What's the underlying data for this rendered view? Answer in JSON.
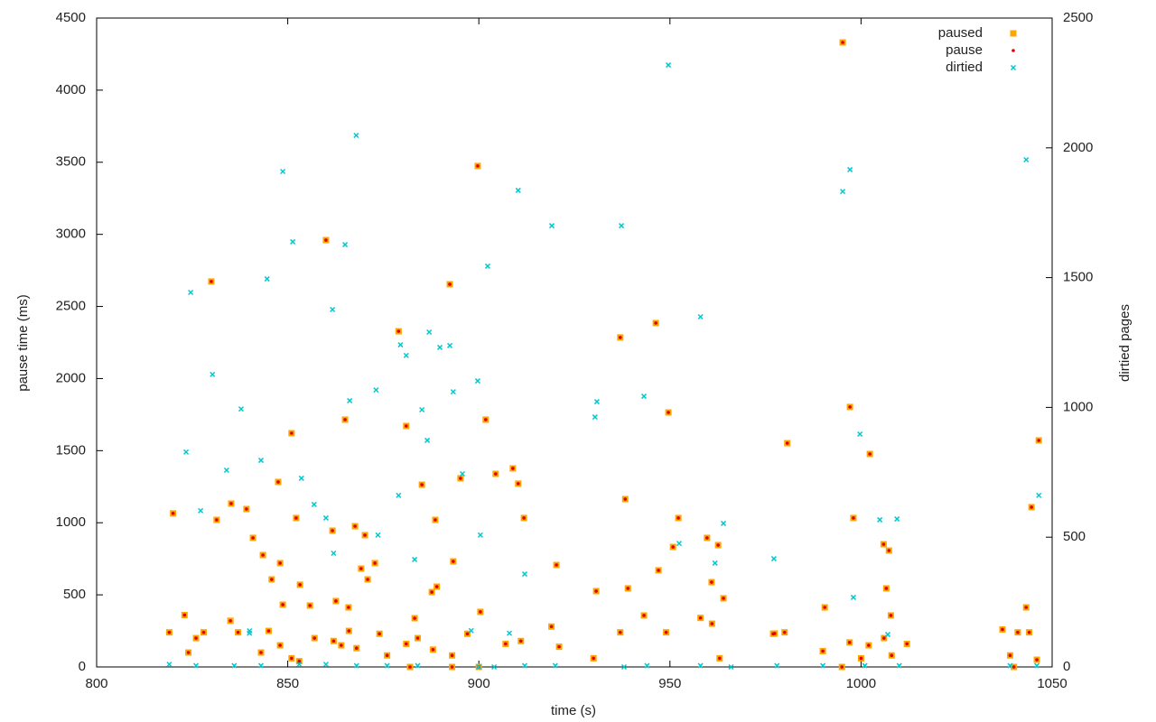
{
  "chart_data": {
    "type": "scatter",
    "xlabel": "time (s)",
    "ylabel": "pause time (ms)",
    "y2label": "dirtied pages",
    "xlim": [
      800,
      1050
    ],
    "xticks": [
      800,
      850,
      900,
      950,
      1000,
      1050
    ],
    "ylim": [
      0,
      4500
    ],
    "yticks": [
      0,
      500,
      1000,
      1500,
      2000,
      2500,
      3000,
      3500,
      4000,
      4500
    ],
    "y2lim": [
      0,
      2500
    ],
    "y2ticks": [
      0,
      500,
      1000,
      1500,
      2000,
      2500
    ],
    "grid": false,
    "legend": "top-right",
    "series": [
      {
        "name": "paused",
        "color": "#ffa500",
        "marker": "square",
        "x": [
          820,
          830,
          831.4,
          835.2,
          839.2,
          840.9,
          843.5,
          845.8,
          847.5,
          848,
          848.7,
          851,
          852.2,
          853.2,
          855.8,
          860,
          861.7,
          862.6,
          865,
          865.9,
          867.6,
          869.2,
          870.2,
          870.9,
          872.8,
          879,
          881,
          883.2,
          885.1,
          887.7,
          888.6,
          889,
          892.4,
          893.3,
          895.2,
          899.7,
          900.4,
          901.8,
          904.4,
          908.9,
          910.3,
          911.8,
          920.3,
          930.7,
          937,
          938.3,
          939,
          943.2,
          946.3,
          947,
          949.6,
          950.8,
          952.2,
          959.7,
          960.9,
          962.6,
          964,
          977.4,
          980.7,
          990.5,
          995.2,
          997.1,
          998,
          1002.3,
          1005.9,
          1007.3,
          1006.6,
          1007.8,
          1044.6,
          1043.2,
          1046.5,
          819,
          823,
          824,
          826,
          828,
          835,
          837,
          843,
          845,
          848,
          851,
          853,
          857,
          862,
          864,
          866,
          868,
          874,
          876,
          881,
          884,
          888,
          893,
          897,
          907,
          911,
          919,
          921,
          930,
          937,
          949,
          958,
          961,
          963,
          977,
          980,
          990,
          997,
          1000,
          1002,
          1006,
          1008,
          1012,
          1037,
          1039,
          1041,
          1044,
          1046,
          1040,
          893,
          882,
          995,
          900
        ],
        "values": [
          1065,
          2673,
          1020,
          1133,
          1095,
          895,
          776,
          607,
          1283,
          720,
          432,
          1621,
          1033,
          570,
          426,
          2960,
          945,
          457,
          1715,
          413,
          976,
          682,
          914,
          607,
          720,
          2328,
          1671,
          338,
          1264,
          519,
          1020,
          557,
          2654,
          732,
          1308,
          3474,
          382,
          1715,
          1339,
          1377,
          1271,
          1033,
          707,
          526,
          2285,
          1164,
          545,
          357,
          2385,
          670,
          1765,
          832,
          1033,
          895,
          588,
          845,
          476,
          232,
          1552,
          413,
          4331,
          1803,
          1033,
          1477,
          851,
          807,
          545,
          357,
          1108,
          413,
          1571,
          240,
          360,
          100,
          200,
          240,
          320,
          240,
          100,
          250,
          150,
          60,
          40,
          200,
          180,
          150,
          250,
          130,
          230,
          80,
          160,
          200,
          120,
          80,
          230,
          160,
          180,
          280,
          140,
          60,
          240,
          240,
          340,
          300,
          60,
          230,
          240,
          110,
          170,
          60,
          150,
          200,
          80,
          160,
          260,
          80,
          240,
          240,
          50,
          0,
          0,
          0,
          0,
          0
        ]
      },
      {
        "name": "pause",
        "color": "#e00000",
        "marker": "dot",
        "x": [
          820,
          830,
          831.4,
          835.2,
          839.2,
          840.9,
          843.5,
          845.8,
          847.5,
          848,
          848.7,
          851,
          852.2,
          853.2,
          855.8,
          860,
          861.7,
          862.6,
          865,
          865.9,
          867.6,
          869.2,
          870.2,
          870.9,
          872.8,
          879,
          881,
          883.2,
          885.1,
          887.7,
          888.6,
          889,
          892.4,
          893.3,
          895.2,
          899.7,
          900.4,
          901.8,
          904.4,
          908.9,
          910.3,
          911.8,
          920.3,
          930.7,
          937,
          938.3,
          939,
          943.2,
          946.3,
          947,
          949.6,
          950.8,
          952.2,
          959.7,
          960.9,
          962.6,
          964,
          977.4,
          980.7,
          990.5,
          995.2,
          997.1,
          998,
          1002.3,
          1005.9,
          1007.3,
          1006.6,
          1007.8,
          1044.6,
          1043.2,
          1046.5,
          819,
          823,
          824,
          826,
          828,
          835,
          837,
          843,
          845,
          848,
          851,
          853,
          857,
          862,
          864,
          866,
          868,
          874,
          876,
          881,
          884,
          888,
          893,
          897,
          907,
          911,
          919,
          921,
          930,
          937,
          949,
          958,
          961,
          963,
          977,
          980,
          990,
          997,
          1000,
          1002,
          1006,
          1008,
          1012,
          1037,
          1039,
          1041,
          1044,
          1046,
          1040,
          893,
          882,
          995,
          900
        ],
        "values": [
          1065,
          2673,
          1020,
          1133,
          1095,
          895,
          776,
          607,
          1283,
          720,
          432,
          1621,
          1033,
          570,
          426,
          2960,
          945,
          457,
          1715,
          413,
          976,
          682,
          914,
          607,
          720,
          2328,
          1671,
          338,
          1264,
          519,
          1020,
          557,
          2654,
          732,
          1308,
          3474,
          382,
          1715,
          1339,
          1377,
          1271,
          1033,
          707,
          526,
          2285,
          1164,
          545,
          357,
          2385,
          670,
          1765,
          832,
          1033,
          895,
          588,
          845,
          476,
          232,
          1552,
          413,
          4331,
          1803,
          1033,
          1477,
          851,
          807,
          545,
          357,
          1108,
          413,
          1571,
          240,
          360,
          100,
          200,
          240,
          320,
          240,
          100,
          250,
          150,
          60,
          40,
          200,
          180,
          150,
          250,
          130,
          230,
          80,
          160,
          200,
          120,
          80,
          230,
          160,
          180,
          280,
          140,
          60,
          240,
          240,
          340,
          300,
          60,
          230,
          240,
          110,
          170,
          60,
          150,
          200,
          80,
          160,
          260,
          80,
          240,
          240,
          50,
          0,
          0,
          0,
          0,
          0
        ]
      },
      {
        "name": "dirtied",
        "color": "#00c8d0",
        "marker": "x",
        "axis": "y2",
        "x": [
          824.6,
          823.4,
          827.2,
          830.3,
          834,
          837.8,
          840,
          843,
          844.6,
          848.7,
          851.3,
          853.6,
          856.9,
          860,
          861.7,
          862,
          865,
          866.2,
          867.9,
          873.1,
          873.6,
          879,
          879.5,
          881,
          883.2,
          885.1,
          886.5,
          887,
          889.8,
          892.4,
          893.3,
          895.7,
          899.7,
          900.4,
          902.3,
          910.3,
          912,
          919.1,
          930.4,
          930.9,
          937.3,
          943.2,
          949.6,
          952.4,
          958,
          961.8,
          964,
          977.2,
          995.2,
          997.1,
          998,
          999.7,
          1004.9,
          1009.4,
          1043.2,
          1046.5,
          819,
          826,
          836,
          843,
          853,
          860,
          868,
          876,
          884,
          900,
          904,
          912,
          920,
          938,
          944,
          958,
          966,
          978,
          990,
          1001,
          1010,
          1039,
          1046,
          898,
          908,
          1007,
          840
        ],
        "values": [
          1443,
          828,
          602,
          1127,
          758,
          994,
          139,
          796,
          1495,
          1909,
          1638,
          727,
          626,
          574,
          1377,
          438,
          1627,
          1026,
          2048,
          1067,
          508,
          661,
          1241,
          1200,
          414,
          991,
          873,
          1290,
          1231,
          1238,
          1060,
          744,
          1102,
          508,
          1544,
          1836,
          358,
          1700,
          963,
          1022,
          1700,
          1043,
          2319,
          476,
          1349,
          400,
          553,
          417,
          1832,
          1916,
          268,
          897,
          567,
          570,
          1954,
          661,
          10,
          5,
          5,
          5,
          10,
          10,
          5,
          5,
          5,
          0,
          0,
          5,
          5,
          0,
          5,
          5,
          0,
          5,
          5,
          5,
          5,
          5,
          5,
          140,
          130,
          125,
          130
        ]
      }
    ]
  }
}
